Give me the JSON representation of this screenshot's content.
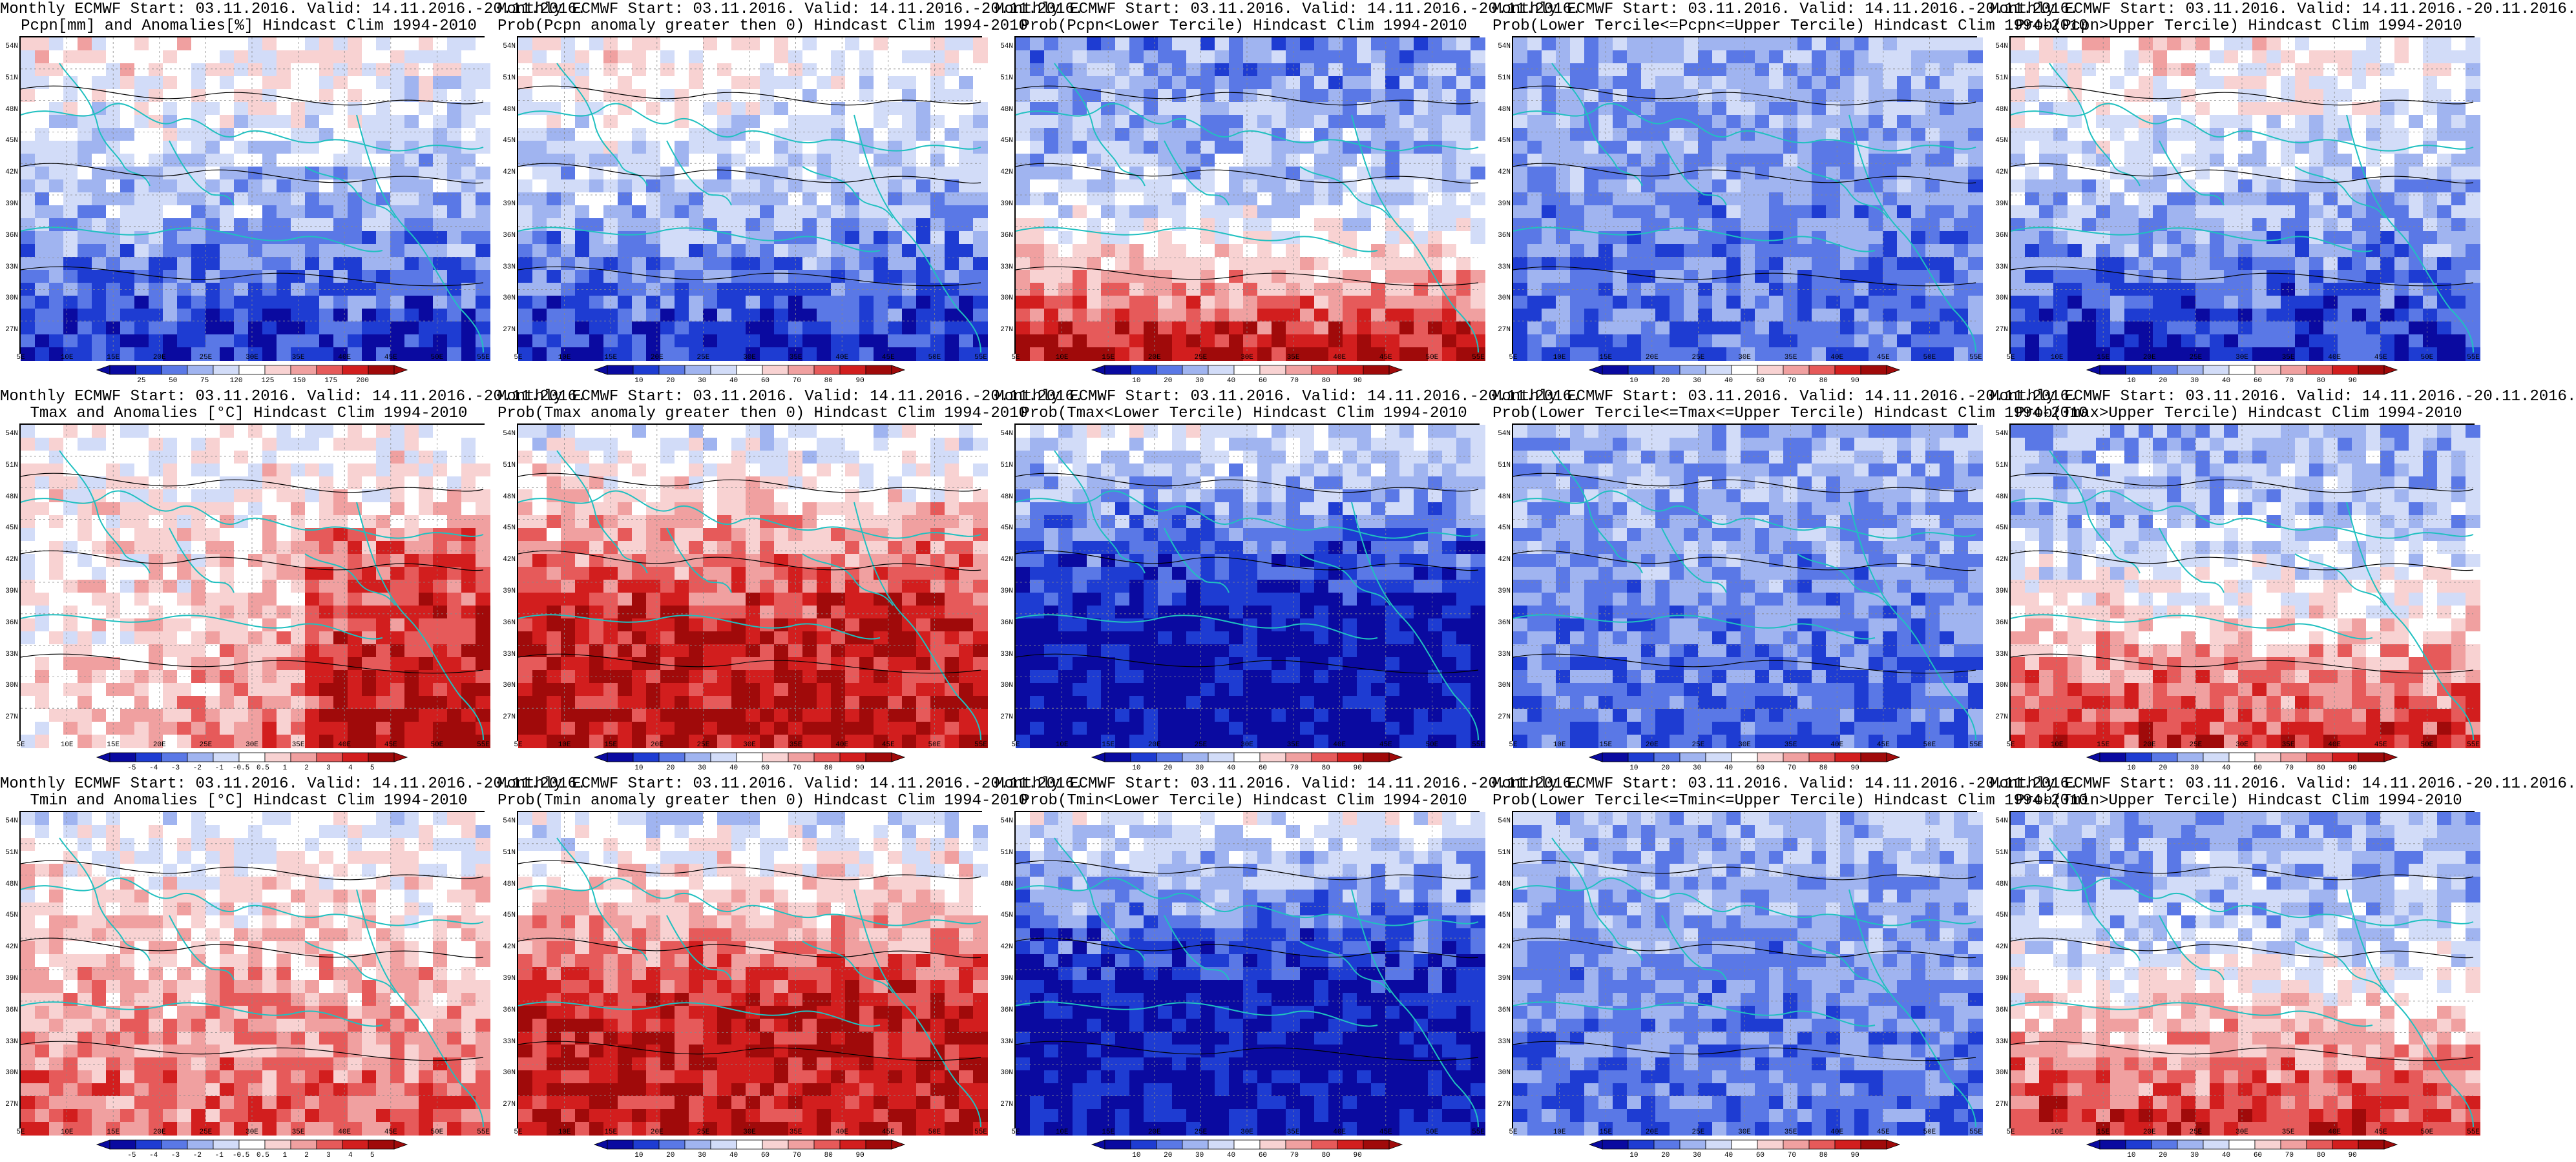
{
  "panels": [
    {
      "title1": "Monthly ECMWF Start: 03.11.2016. Valid: 14.11.2016.-20.11.2016.",
      "title2": "Pcpn[mm] and Anomalies[%] Hindcast Clim 1994-2010",
      "pattern": "pcpn",
      "colorbar": [
        "25",
        "50",
        "75",
        "120",
        "125",
        "150",
        "175",
        "200"
      ]
    },
    {
      "title1": "Monthly ECMWF Start: 03.11.2016. Valid: 14.11.2016.-20.11.2016.",
      "title2": "Prob(Pcpn anomaly greater then 0) Hindcast Clim 1994-2010",
      "pattern": "pcpn",
      "colorbar": [
        "10",
        "20",
        "30",
        "40",
        "60",
        "70",
        "80",
        "90"
      ]
    },
    {
      "title1": "Monthly ECMWF Start: 03.11.2016. Valid: 14.11.2016.-20.11.2016.",
      "title2": "Prob(Pcpn<Lower Tercile) Hindcast Clim 1994-2010",
      "pattern": "pcpnLow",
      "colorbar": [
        "10",
        "20",
        "30",
        "40",
        "60",
        "70",
        "80",
        "90"
      ]
    },
    {
      "title1": "Monthly ECMWF Start: 03.11.2016. Valid: 14.11.2016.-20.11.2016.",
      "title2": "Prob(Lower Tercile<=Pcpn<=Upper Tercile) Hindcast Clim 1994-2010",
      "pattern": "mid",
      "colorbar": [
        "10",
        "20",
        "30",
        "40",
        "60",
        "70",
        "80",
        "90"
      ]
    },
    {
      "title1": "Monthly ECMWF Start: 03.11.2016. Valid: 14.11.2016.-20.11.2016.",
      "title2": "Prob(Pcpn>Upper Tercile) Hindcast Clim 1994-2010",
      "pattern": "pcpn",
      "colorbar": [
        "10",
        "20",
        "30",
        "40",
        "60",
        "70",
        "80",
        "90"
      ]
    },
    {
      "title1": "Monthly ECMWF Start: 03.11.2016. Valid: 14.11.2016.-20.11.2016.",
      "title2": "Tmax and Anomalies [°C] Hindcast Clim 1994-2010",
      "pattern": "warm",
      "colorbar": [
        "-5",
        "-4",
        "-3",
        "-2",
        "-1",
        "-0.5",
        "0.5",
        "1",
        "2",
        "3",
        "4",
        "5"
      ]
    },
    {
      "title1": "Monthly ECMWF Start: 03.11.2016. Valid: 14.11.2016.-20.11.2016.",
      "title2": "Prob(Tmax anomaly greater then 0) Hindcast Clim 1994-2010",
      "pattern": "warmStrong",
      "colorbar": [
        "10",
        "20",
        "30",
        "40",
        "60",
        "70",
        "80",
        "90"
      ]
    },
    {
      "title1": "Monthly ECMWF Start: 03.11.2016. Valid: 14.11.2016.-20.11.2016.",
      "title2": "Prob(Tmax<Lower Tercile) Hindcast Clim 1994-2010",
      "pattern": "coldStrong",
      "colorbar": [
        "10",
        "20",
        "30",
        "40",
        "60",
        "70",
        "80",
        "90"
      ]
    },
    {
      "title1": "Monthly ECMWF Start: 03.11.2016. Valid: 14.11.2016.-20.11.2016.",
      "title2": "Prob(Lower Tercile<=Tmax<=Upper Tercile) Hindcast Clim 1994-2010",
      "pattern": "mid",
      "colorbar": [
        "10",
        "20",
        "30",
        "40",
        "60",
        "70",
        "80",
        "90"
      ]
    },
    {
      "title1": "Monthly ECMWF Start: 03.11.2016. Valid: 14.11.2016.-20.11.2016.",
      "title2": "Prob(Tmax>Upper Tercile) Hindcast Clim 1994-2010",
      "pattern": "warmUpper",
      "colorbar": [
        "10",
        "20",
        "30",
        "40",
        "60",
        "70",
        "80",
        "90"
      ]
    },
    {
      "title1": "Monthly ECMWF Start: 03.11.2016. Valid: 14.11.2016.-20.11.2016.",
      "title2": "Tmin and Anomalies [°C] Hindcast Clim 1994-2010",
      "pattern": "warmLight",
      "colorbar": [
        "-5",
        "-4",
        "-3",
        "-2",
        "-1",
        "-0.5",
        "0.5",
        "1",
        "2",
        "3",
        "4",
        "5"
      ]
    },
    {
      "title1": "Monthly ECMWF Start: 03.11.2016. Valid: 14.11.2016.-20.11.2016.",
      "title2": "Prob(Tmin anomaly greater then 0) Hindcast Clim 1994-2010",
      "pattern": "warmStrong",
      "colorbar": [
        "10",
        "20",
        "30",
        "40",
        "60",
        "70",
        "80",
        "90"
      ]
    },
    {
      "title1": "Monthly ECMWF Start: 03.11.2016. Valid: 14.11.2016.-20.11.2016.",
      "title2": "Prob(Tmin<Lower Tercile) Hindcast Clim 1994-2010",
      "pattern": "coldStrong",
      "colorbar": [
        "10",
        "20",
        "30",
        "40",
        "60",
        "70",
        "80",
        "90"
      ]
    },
    {
      "title1": "Monthly ECMWF Start: 03.11.2016. Valid: 14.11.2016.-20.11.2016.",
      "title2": "Prob(Lower Tercile<=Tmin<=Upper Tercile) Hindcast Clim 1994-2010",
      "pattern": "mid",
      "colorbar": [
        "10",
        "20",
        "30",
        "40",
        "60",
        "70",
        "80",
        "90"
      ]
    },
    {
      "title1": "Monthly ECMWF Start: 03.11.2016. Valid: 14.11.2016.-20.11.2016.",
      "title2": "Prob(Tmin>Upper Tercile) Hindcast Clim 1994-2010",
      "pattern": "warmUpper",
      "colorbar": [
        "10",
        "20",
        "30",
        "40",
        "60",
        "70",
        "80",
        "90"
      ]
    }
  ],
  "lat_labels": [
    "54N",
    "51N",
    "48N",
    "45N",
    "42N",
    "39N",
    "36N",
    "33N",
    "30N",
    "27N"
  ],
  "lon_labels": [
    "5E",
    "10E",
    "15E",
    "20E",
    "25E",
    "30E",
    "35E",
    "40E",
    "45E",
    "50E",
    "55E"
  ],
  "colors": {
    "blues": [
      "#0a0aa0",
      "#1e3cd2",
      "#5a78e6",
      "#a0b4f0",
      "#d2dcf8"
    ],
    "reds": [
      "#f8d2d2",
      "#f0a0a0",
      "#e65a5a",
      "#d21e1e",
      "#a00a0a"
    ],
    "coast": "#20c0c0",
    "contour": "#000000"
  }
}
